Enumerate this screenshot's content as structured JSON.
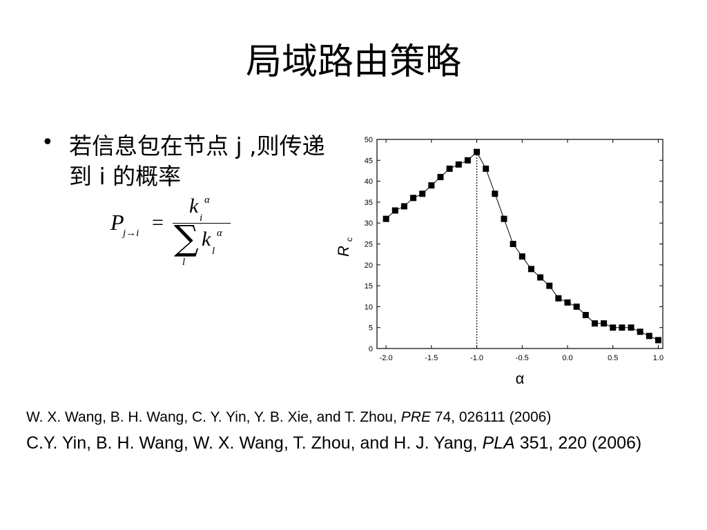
{
  "slide": {
    "title": "局域路由策略",
    "bullet": "若信息包在节点 j ,则传递到 i 的概率"
  },
  "formula": {
    "lhs": "P",
    "lhs_sub": "j→i",
    "eq": "=",
    "num": "k",
    "num_sub": "i",
    "num_sup": "α",
    "sum": "∑",
    "sum_sub": "l",
    "den": "k",
    "den_sub": "l",
    "den_sup": "α"
  },
  "chart_data": {
    "type": "line",
    "xlabel": "α",
    "ylabel": "R",
    "ylabel_sub": "c",
    "xlim": [
      -2.1,
      1.05
    ],
    "ylim": [
      0,
      50
    ],
    "xticks": [
      "-2.0",
      "-1.5",
      "-1.0",
      "-0.5",
      "0.0",
      "0.5",
      "1.0"
    ],
    "yticks": [
      "0",
      "5",
      "10",
      "15",
      "20",
      "25",
      "30",
      "35",
      "40",
      "45",
      "50"
    ],
    "grid": false,
    "marker": "square",
    "vertical_reference_line_x": -1.0,
    "x": [
      -2.0,
      -1.9,
      -1.8,
      -1.7,
      -1.6,
      -1.5,
      -1.4,
      -1.3,
      -1.2,
      -1.1,
      -1.0,
      -0.9,
      -0.8,
      -0.7,
      -0.6,
      -0.5,
      -0.4,
      -0.3,
      -0.2,
      -0.1,
      0.0,
      0.1,
      0.2,
      0.3,
      0.4,
      0.5,
      0.6,
      0.7,
      0.8,
      0.9,
      1.0
    ],
    "y": [
      31,
      33,
      34,
      36,
      37,
      39,
      41,
      43,
      44,
      45,
      47,
      43,
      37,
      31,
      25,
      22,
      19,
      17,
      15,
      12,
      11,
      10,
      8,
      6,
      6,
      5,
      5,
      5,
      4,
      3,
      2
    ]
  },
  "references": [
    {
      "pre": "W. X. Wang, B. H. Wang, C. Y. Yin, Y. B. Xie, and T. Zhou, ",
      "journal": "PRE",
      "post": " 74, 026111 (2006)"
    },
    {
      "pre": "C.Y. Yin, B. H. Wang, W. X. Wang, T. Zhou, and H. J. Yang, ",
      "journal": "PLA",
      "post": " 351, 220 (2006)"
    }
  ],
  "colors": {
    "background": "#ffffff",
    "text": "#000000",
    "marker": "#000000"
  }
}
